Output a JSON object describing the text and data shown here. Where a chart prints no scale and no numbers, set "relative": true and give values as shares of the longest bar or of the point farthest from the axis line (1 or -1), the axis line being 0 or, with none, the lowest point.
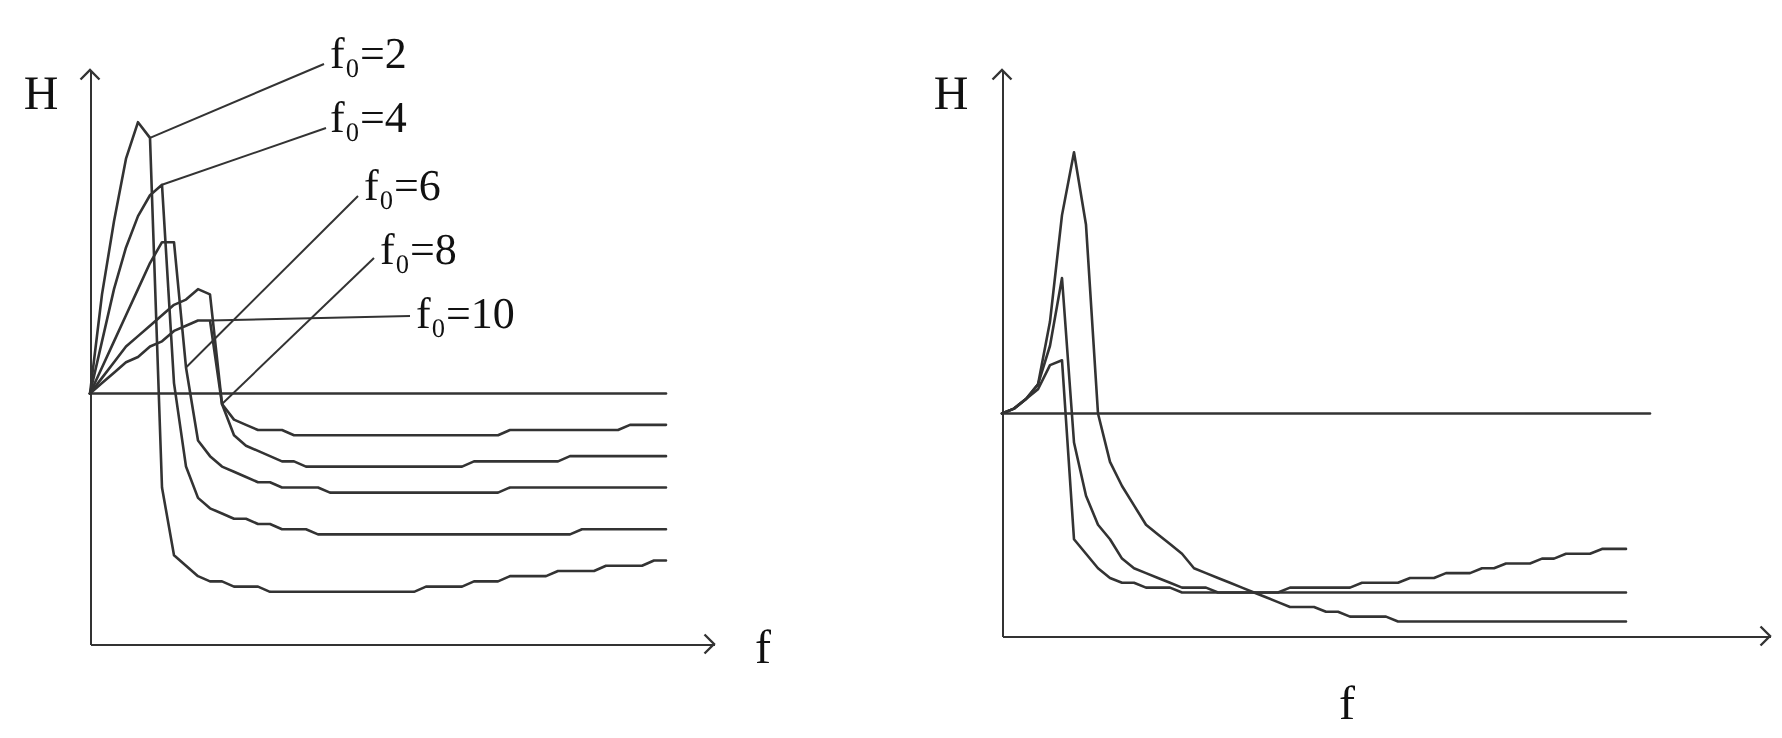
{
  "chart_data": [
    {
      "type": "line",
      "relative": true,
      "xlabel": "f",
      "ylabel": "H",
      "categories": [
        null,
        null,
        null,
        null,
        null,
        null,
        null,
        null,
        null,
        null,
        null,
        null,
        null,
        null,
        null,
        null,
        null,
        null,
        null,
        null,
        null,
        null,
        null,
        null,
        null,
        null,
        null,
        null,
        null,
        null,
        null,
        null,
        null,
        null,
        null,
        null,
        null,
        null,
        null,
        null,
        null,
        null,
        null,
        null,
        null,
        null,
        null,
        null,
        null,
        null,
        null,
        null,
        null
      ],
      "series": [
        {
          "color": "#333333",
          "values": [
            0.48,
            0.67,
            0.81,
            0.93,
            1,
            0.97,
            0.3,
            0.17,
            0.15,
            0.13,
            0.12,
            0.12,
            0.11,
            0.11,
            0.11,
            0.1,
            0.1,
            0.1,
            0.1,
            0.1,
            0.1,
            0.1,
            0.1,
            0.1,
            0.1,
            0.1,
            0.1,
            0.1,
            0.11,
            0.11,
            0.11,
            0.11,
            0.12,
            0.12,
            0.12,
            0.13,
            0.13,
            0.13,
            0.13,
            0.14,
            0.14,
            0.14,
            0.14,
            0.15,
            0.15,
            0.15,
            0.15,
            0.16,
            0.16,
            null,
            null,
            null,
            null
          ]
        },
        {
          "color": "#333333",
          "values": [
            0.48,
            0.58,
            0.68,
            0.76,
            0.82,
            0.86,
            0.88,
            0.5,
            0.34,
            0.28,
            0.26,
            0.25,
            0.24,
            0.24,
            0.23,
            0.23,
            0.22,
            0.22,
            0.22,
            0.21,
            0.21,
            0.21,
            0.21,
            0.21,
            0.21,
            0.21,
            0.21,
            0.21,
            0.21,
            0.21,
            0.21,
            0.21,
            0.21,
            0.21,
            0.21,
            0.21,
            0.21,
            0.21,
            0.21,
            0.21,
            0.21,
            0.22,
            0.22,
            0.22,
            0.22,
            0.22,
            0.22,
            0.22,
            0.22,
            null,
            null,
            null,
            null
          ]
        },
        {
          "color": "#333333",
          "values": [
            0.48,
            0.53,
            0.58,
            0.63,
            0.68,
            0.73,
            0.77,
            0.77,
            0.53,
            0.39,
            0.36,
            0.34,
            0.33,
            0.32,
            0.31,
            0.31,
            0.3,
            0.3,
            0.3,
            0.3,
            0.29,
            0.29,
            0.29,
            0.29,
            0.29,
            0.29,
            0.29,
            0.29,
            0.29,
            0.29,
            0.29,
            0.29,
            0.29,
            0.29,
            0.29,
            0.3,
            0.3,
            0.3,
            0.3,
            0.3,
            0.3,
            0.3,
            0.3,
            0.3,
            0.3,
            0.3,
            0.3,
            0.3,
            0.3,
            null,
            null,
            null,
            null
          ]
        },
        {
          "color": "#333333",
          "values": [
            0.48,
            0.51,
            0.54,
            0.57,
            0.59,
            0.61,
            0.63,
            0.65,
            0.66,
            0.68,
            0.67,
            0.46,
            0.4,
            0.38,
            0.37,
            0.36,
            0.35,
            0.35,
            0.34,
            0.34,
            0.34,
            0.34,
            0.34,
            0.34,
            0.34,
            0.34,
            0.34,
            0.34,
            0.34,
            0.34,
            0.34,
            0.34,
            0.35,
            0.35,
            0.35,
            0.35,
            0.35,
            0.35,
            0.35,
            0.35,
            0.36,
            0.36,
            0.36,
            0.36,
            0.36,
            0.36,
            0.36,
            0.36,
            0.36,
            null,
            null,
            null,
            null
          ]
        },
        {
          "color": "#333333",
          "values": [
            0.48,
            0.5,
            0.52,
            0.54,
            0.55,
            0.57,
            0.58,
            0.6,
            0.61,
            0.62,
            0.62,
            0.46,
            0.43,
            0.42,
            0.41,
            0.41,
            0.41,
            0.4,
            0.4,
            0.4,
            0.4,
            0.4,
            0.4,
            0.4,
            0.4,
            0.4,
            0.4,
            0.4,
            0.4,
            0.4,
            0.4,
            0.4,
            0.4,
            0.4,
            0.4,
            0.41,
            0.41,
            0.41,
            0.41,
            0.41,
            0.41,
            0.41,
            0.41,
            0.41,
            0.41,
            0.42,
            0.42,
            0.42,
            0.42,
            null,
            null,
            null,
            null
          ]
        },
        {
          "color": "#333333",
          "values": [
            0.48,
            0.48,
            0.48,
            0.48,
            0.48,
            0.48,
            0.48,
            0.48,
            0.48,
            0.48,
            0.48,
            0.48,
            0.48,
            0.48,
            0.48,
            0.48,
            0.48,
            0.48,
            0.48,
            0.48,
            0.48,
            0.48,
            0.48,
            0.48,
            0.48,
            0.48,
            0.48,
            0.48,
            0.48,
            0.48,
            0.48,
            0.48,
            0.48,
            0.48,
            0.48,
            0.48,
            0.48,
            0.48,
            0.48,
            0.48,
            0.48,
            0.48,
            0.48,
            0.48,
            0.48,
            0.48,
            0.48,
            0.48,
            0.48,
            null,
            null,
            null,
            null
          ]
        }
      ],
      "annotations": [
        "f₀=2",
        "f₀=4",
        "f₀=6",
        "f₀=8",
        "f₀=10"
      ]
    },
    {
      "type": "line",
      "relative": true,
      "xlabel": "f",
      "ylabel": "H",
      "categories": [
        null,
        null,
        null,
        null,
        null,
        null,
        null,
        null,
        null,
        null,
        null,
        null,
        null,
        null,
        null,
        null,
        null,
        null,
        null,
        null,
        null,
        null,
        null,
        null,
        null,
        null,
        null,
        null,
        null,
        null,
        null,
        null,
        null,
        null,
        null,
        null,
        null,
        null,
        null,
        null,
        null,
        null,
        null,
        null,
        null,
        null,
        null,
        null,
        null,
        null,
        null,
        null,
        null,
        null,
        null,
        null,
        null,
        null,
        null,
        null,
        null,
        null,
        null,
        null,
        null
      ],
      "series": [
        {
          "color": "#333333",
          "values": [
            0.46,
            0.47,
            0.49,
            0.52,
            0.65,
            0.87,
            1,
            0.85,
            0.46,
            0.36,
            0.31,
            0.27,
            0.23,
            0.21,
            0.19,
            0.17,
            0.14,
            0.13,
            0.12,
            0.11,
            0.1,
            0.09,
            0.08,
            0.07,
            0.06,
            0.06,
            0.06,
            0.05,
            0.05,
            0.04,
            0.04,
            0.04,
            0.04,
            0.03,
            0.03,
            0.03,
            0.03,
            0.03,
            0.03,
            0.03,
            0.03,
            0.03,
            0.03,
            0.03,
            0.03,
            0.03,
            0.03,
            0.03,
            0.03,
            0.03,
            0.03,
            0.03,
            0.03,
            null,
            null,
            null,
            null,
            null,
            null,
            null,
            null,
            null,
            null,
            null,
            null
          ]
        },
        {
          "color": "#333333",
          "values": [
            0.46,
            0.47,
            0.49,
            0.52,
            0.6,
            0.74,
            0.4,
            0.29,
            0.23,
            0.2,
            0.16,
            0.14,
            0.13,
            0.12,
            0.11,
            0.1,
            0.1,
            0.1,
            0.09,
            0.09,
            0.09,
            0.09,
            0.09,
            0.09,
            0.09,
            0.09,
            0.09,
            0.09,
            0.09,
            0.09,
            0.09,
            0.09,
            0.09,
            0.09,
            0.09,
            0.09,
            0.09,
            0.09,
            0.09,
            0.09,
            0.09,
            0.09,
            0.09,
            0.09,
            0.09,
            0.09,
            0.09,
            0.09,
            0.09,
            0.09,
            0.09,
            0.09,
            0.09,
            null,
            null,
            null,
            null,
            null,
            null,
            null,
            null,
            null,
            null,
            null,
            null
          ]
        },
        {
          "color": "#333333",
          "values": [
            0.46,
            0.47,
            0.49,
            0.51,
            0.56,
            0.57,
            0.2,
            0.17,
            0.14,
            0.12,
            0.11,
            0.11,
            0.1,
            0.1,
            0.1,
            0.09,
            0.09,
            0.09,
            0.09,
            0.09,
            0.09,
            0.09,
            0.09,
            0.09,
            0.1,
            0.1,
            0.1,
            0.1,
            0.1,
            0.1,
            0.11,
            0.11,
            0.11,
            0.11,
            0.12,
            0.12,
            0.12,
            0.13,
            0.13,
            0.13,
            0.14,
            0.14,
            0.15,
            0.15,
            0.15,
            0.16,
            0.16,
            0.17,
            0.17,
            0.17,
            0.18,
            0.18,
            0.18,
            null,
            null,
            null,
            null,
            null,
            null,
            null,
            null,
            null,
            null,
            null,
            null
          ]
        },
        {
          "color": "#333333",
          "values": [
            0.46,
            0.46,
            0.46,
            0.46,
            0.46,
            0.46,
            0.46,
            0.46,
            0.46,
            0.46,
            0.46,
            0.46,
            0.46,
            0.46,
            0.46,
            0.46,
            0.46,
            0.46,
            0.46,
            0.46,
            0.46,
            0.46,
            0.46,
            0.46,
            0.46,
            0.46,
            0.46,
            0.46,
            0.46,
            0.46,
            0.46,
            0.46,
            0.46,
            0.46,
            0.46,
            0.46,
            0.46,
            0.46,
            0.46,
            0.46,
            0.46,
            0.46,
            0.46,
            0.46,
            0.46,
            0.46,
            0.46,
            0.46,
            0.46,
            0.46,
            0.46,
            0.46,
            0.46,
            0.46,
            0.46,
            null,
            null,
            null,
            null,
            null,
            null,
            null,
            null,
            null,
            null
          ]
        }
      ]
    }
  ]
}
